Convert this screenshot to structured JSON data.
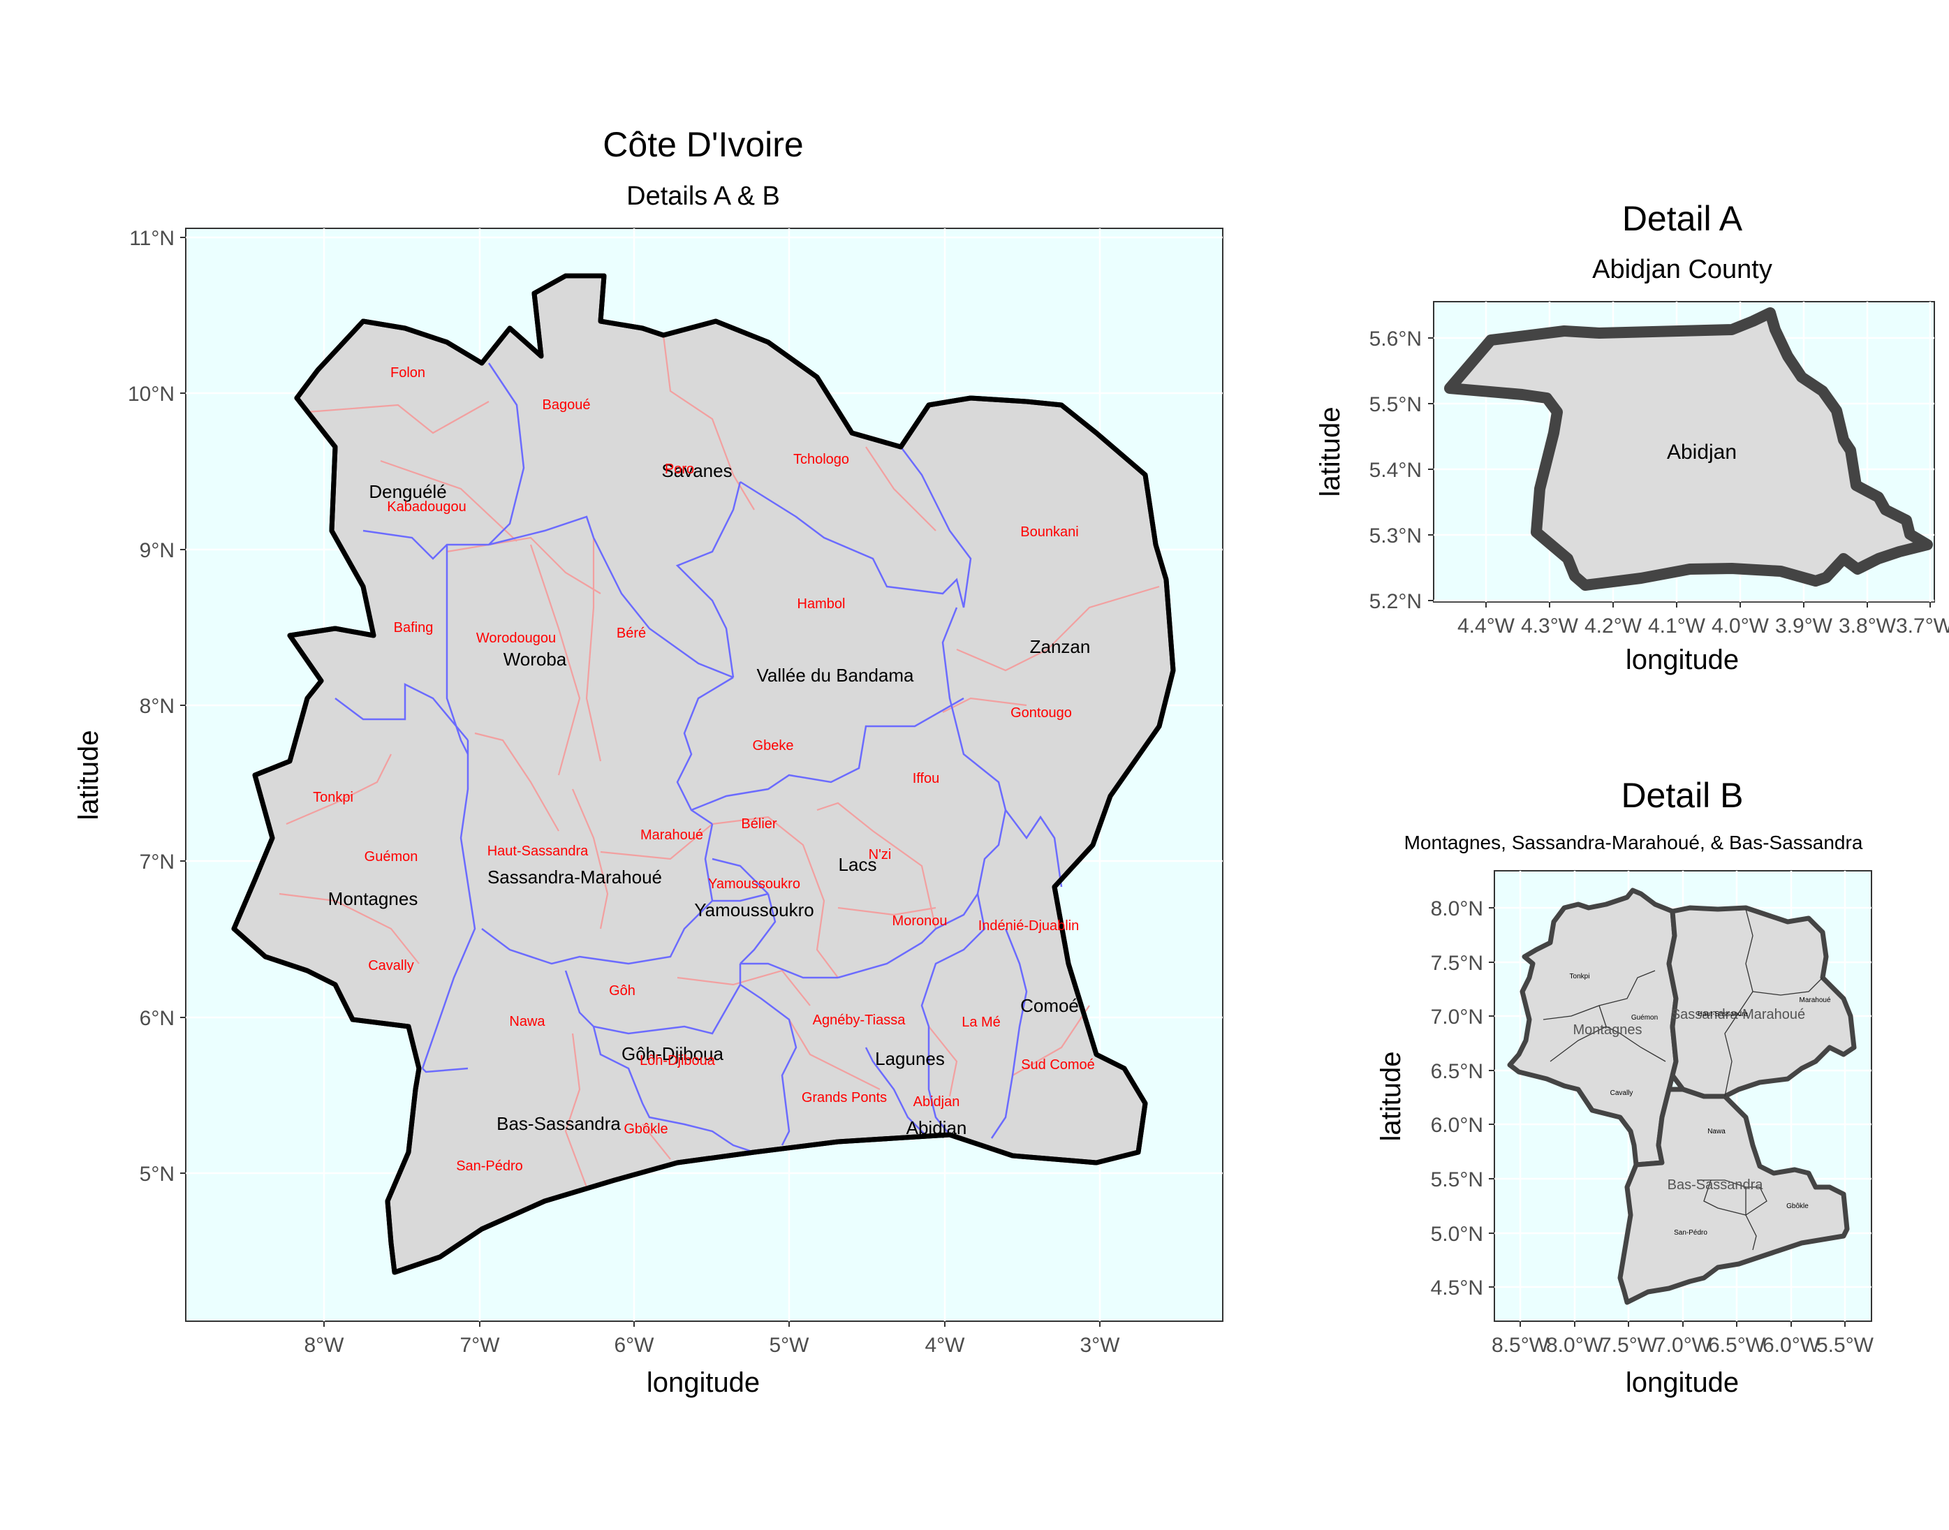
{
  "main_map": {
    "title": "Côte D'Ivoire",
    "subtitle": "Details A & B",
    "xlabel": "longitude",
    "ylabel": "latitude",
    "x_ticks": [
      "8°W",
      "7°W",
      "6°W",
      "5°W",
      "4°W",
      "3°W"
    ],
    "y_ticks": [
      "5°N",
      "6°N",
      "7°N",
      "8°N",
      "9°N",
      "10°N",
      "11°N"
    ],
    "regions": [
      "Denguélé",
      "Savanes",
      "Woroba",
      "Vallée du Bandama",
      "Zanzan",
      "Montagnes",
      "Sassandra-Marahoué",
      "Yamoussoukro",
      "Lacs",
      "Comoé",
      "Gôh-Djiboua",
      "Lagunes",
      "Bas-Sassandra",
      "Abidjan"
    ],
    "departments": [
      "Folon",
      "Bagoué",
      "Kabadougou",
      "Tchologo",
      "Bounkani",
      "Hambol",
      "Bafing",
      "Worodougou",
      "Béré",
      "Gontougo",
      "Gbeke",
      "Iffou",
      "Tonkpi",
      "Bélier",
      "Marahoué",
      "Haut-Sassandra",
      "Guémon",
      "N'zi",
      "Yamoussoukro",
      "Moronou",
      "Indénié-Djuablin",
      "Cavally",
      "Gôh",
      "Nawa",
      "Agnéby-Tiassa",
      "La Mé",
      "Lôh-Djiboua",
      "Sud Comoé",
      "Grands Ponts",
      "Abidjan",
      "Gbôkle",
      "San-Pédro",
      "Poro"
    ]
  },
  "detail_a": {
    "title": "Detail A",
    "subtitle": "Abidjan County",
    "xlabel": "longitude",
    "ylabel": "latitude",
    "x_ticks": [
      "4.4°W",
      "4.3°W",
      "4.2°W",
      "4.1°W",
      "4.0°W",
      "3.9°W",
      "3.8°W",
      "3.7°W"
    ],
    "y_ticks": [
      "5.2°N",
      "5.3°N",
      "5.4°N",
      "5.5°N",
      "5.6°N"
    ],
    "label": "Abidjan"
  },
  "detail_b": {
    "title": "Detail B",
    "subtitle": "Montagnes, Sassandra-Marahoué, & Bas-Sassandra",
    "xlabel": "longitude",
    "ylabel": "latitude",
    "x_ticks": [
      "8.5°W",
      "8.0°W",
      "7.5°W",
      "7.0°W",
      "6.5°W",
      "6.0°W",
      "5.5°W"
    ],
    "y_ticks": [
      "4.5°N",
      "5.0°N",
      "5.5°N",
      "6.0°N",
      "6.5°N",
      "7.0°N",
      "7.5°N",
      "8.0°N"
    ],
    "regions": [
      "Montagnes",
      "Sassandra-Marahoué",
      "Bas-Sassandra"
    ],
    "departments": [
      "Tonkpi",
      "Guémon",
      "Cavally",
      "Haut-Sassandra",
      "Marahoué",
      "Nawa",
      "Gbôkle",
      "San-Pédro"
    ]
  },
  "colors": {
    "panel_bg": "#ebffff",
    "land": "#d9d9d9",
    "country_border": "#000000",
    "region_border": "#6b6bff",
    "department_border": "#f2a0a0",
    "department_label": "#ff0000",
    "detail_outline": "#404040"
  }
}
